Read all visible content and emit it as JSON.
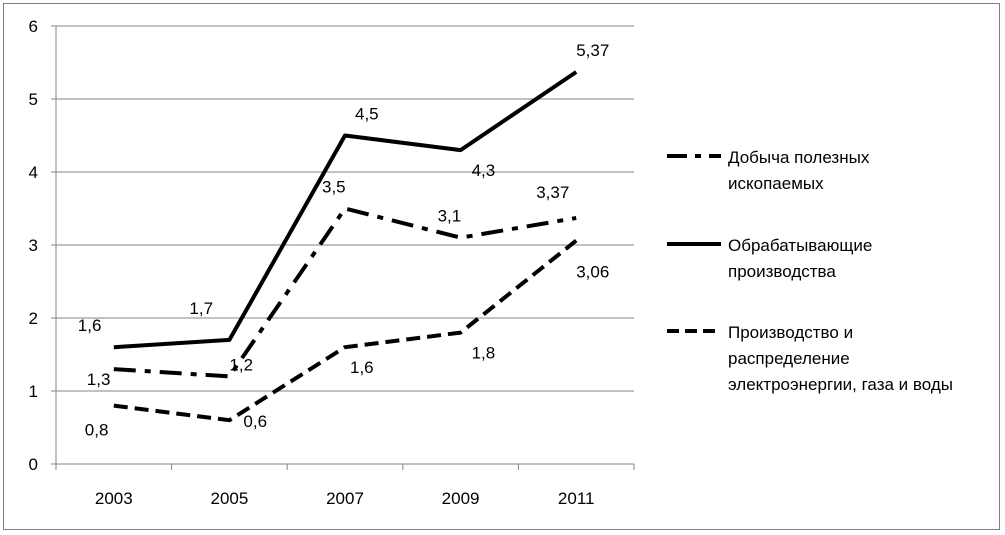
{
  "chart_data": {
    "type": "line",
    "categories": [
      "2003",
      "2005",
      "2007",
      "2009",
      "2011"
    ],
    "ylim": [
      0,
      6
    ],
    "yticks": [
      0,
      1,
      2,
      3,
      4,
      5,
      6
    ],
    "grid": true,
    "legend_position": "right",
    "series": [
      {
        "name_lines": [
          "Добыча полезных",
          "ископаемых"
        ],
        "style": "dash-dot",
        "values": [
          1.3,
          1.2,
          3.5,
          3.1,
          3.37
        ],
        "labels": [
          "1,3",
          "1,2",
          "3,5",
          "3,1",
          "3,37"
        ]
      },
      {
        "name_lines": [
          "Обрабатывающие",
          "производства"
        ],
        "style": "solid",
        "values": [
          1.6,
          1.7,
          4.5,
          4.3,
          5.37
        ],
        "labels": [
          "1,6",
          "1,7",
          "4,5",
          "4,3",
          "5,37"
        ]
      },
      {
        "name_lines": [
          "Производство и",
          "распределение",
          "электроэнергии, газа и воды"
        ],
        "style": "dashed",
        "values": [
          0.8,
          0.6,
          1.6,
          1.8,
          3.06
        ],
        "labels": [
          "0,8",
          "0,6",
          "1,6",
          "1,8",
          "3,06"
        ]
      }
    ],
    "colors": {
      "line": "#000000",
      "grid": "#868686",
      "axis": "#868686"
    }
  }
}
